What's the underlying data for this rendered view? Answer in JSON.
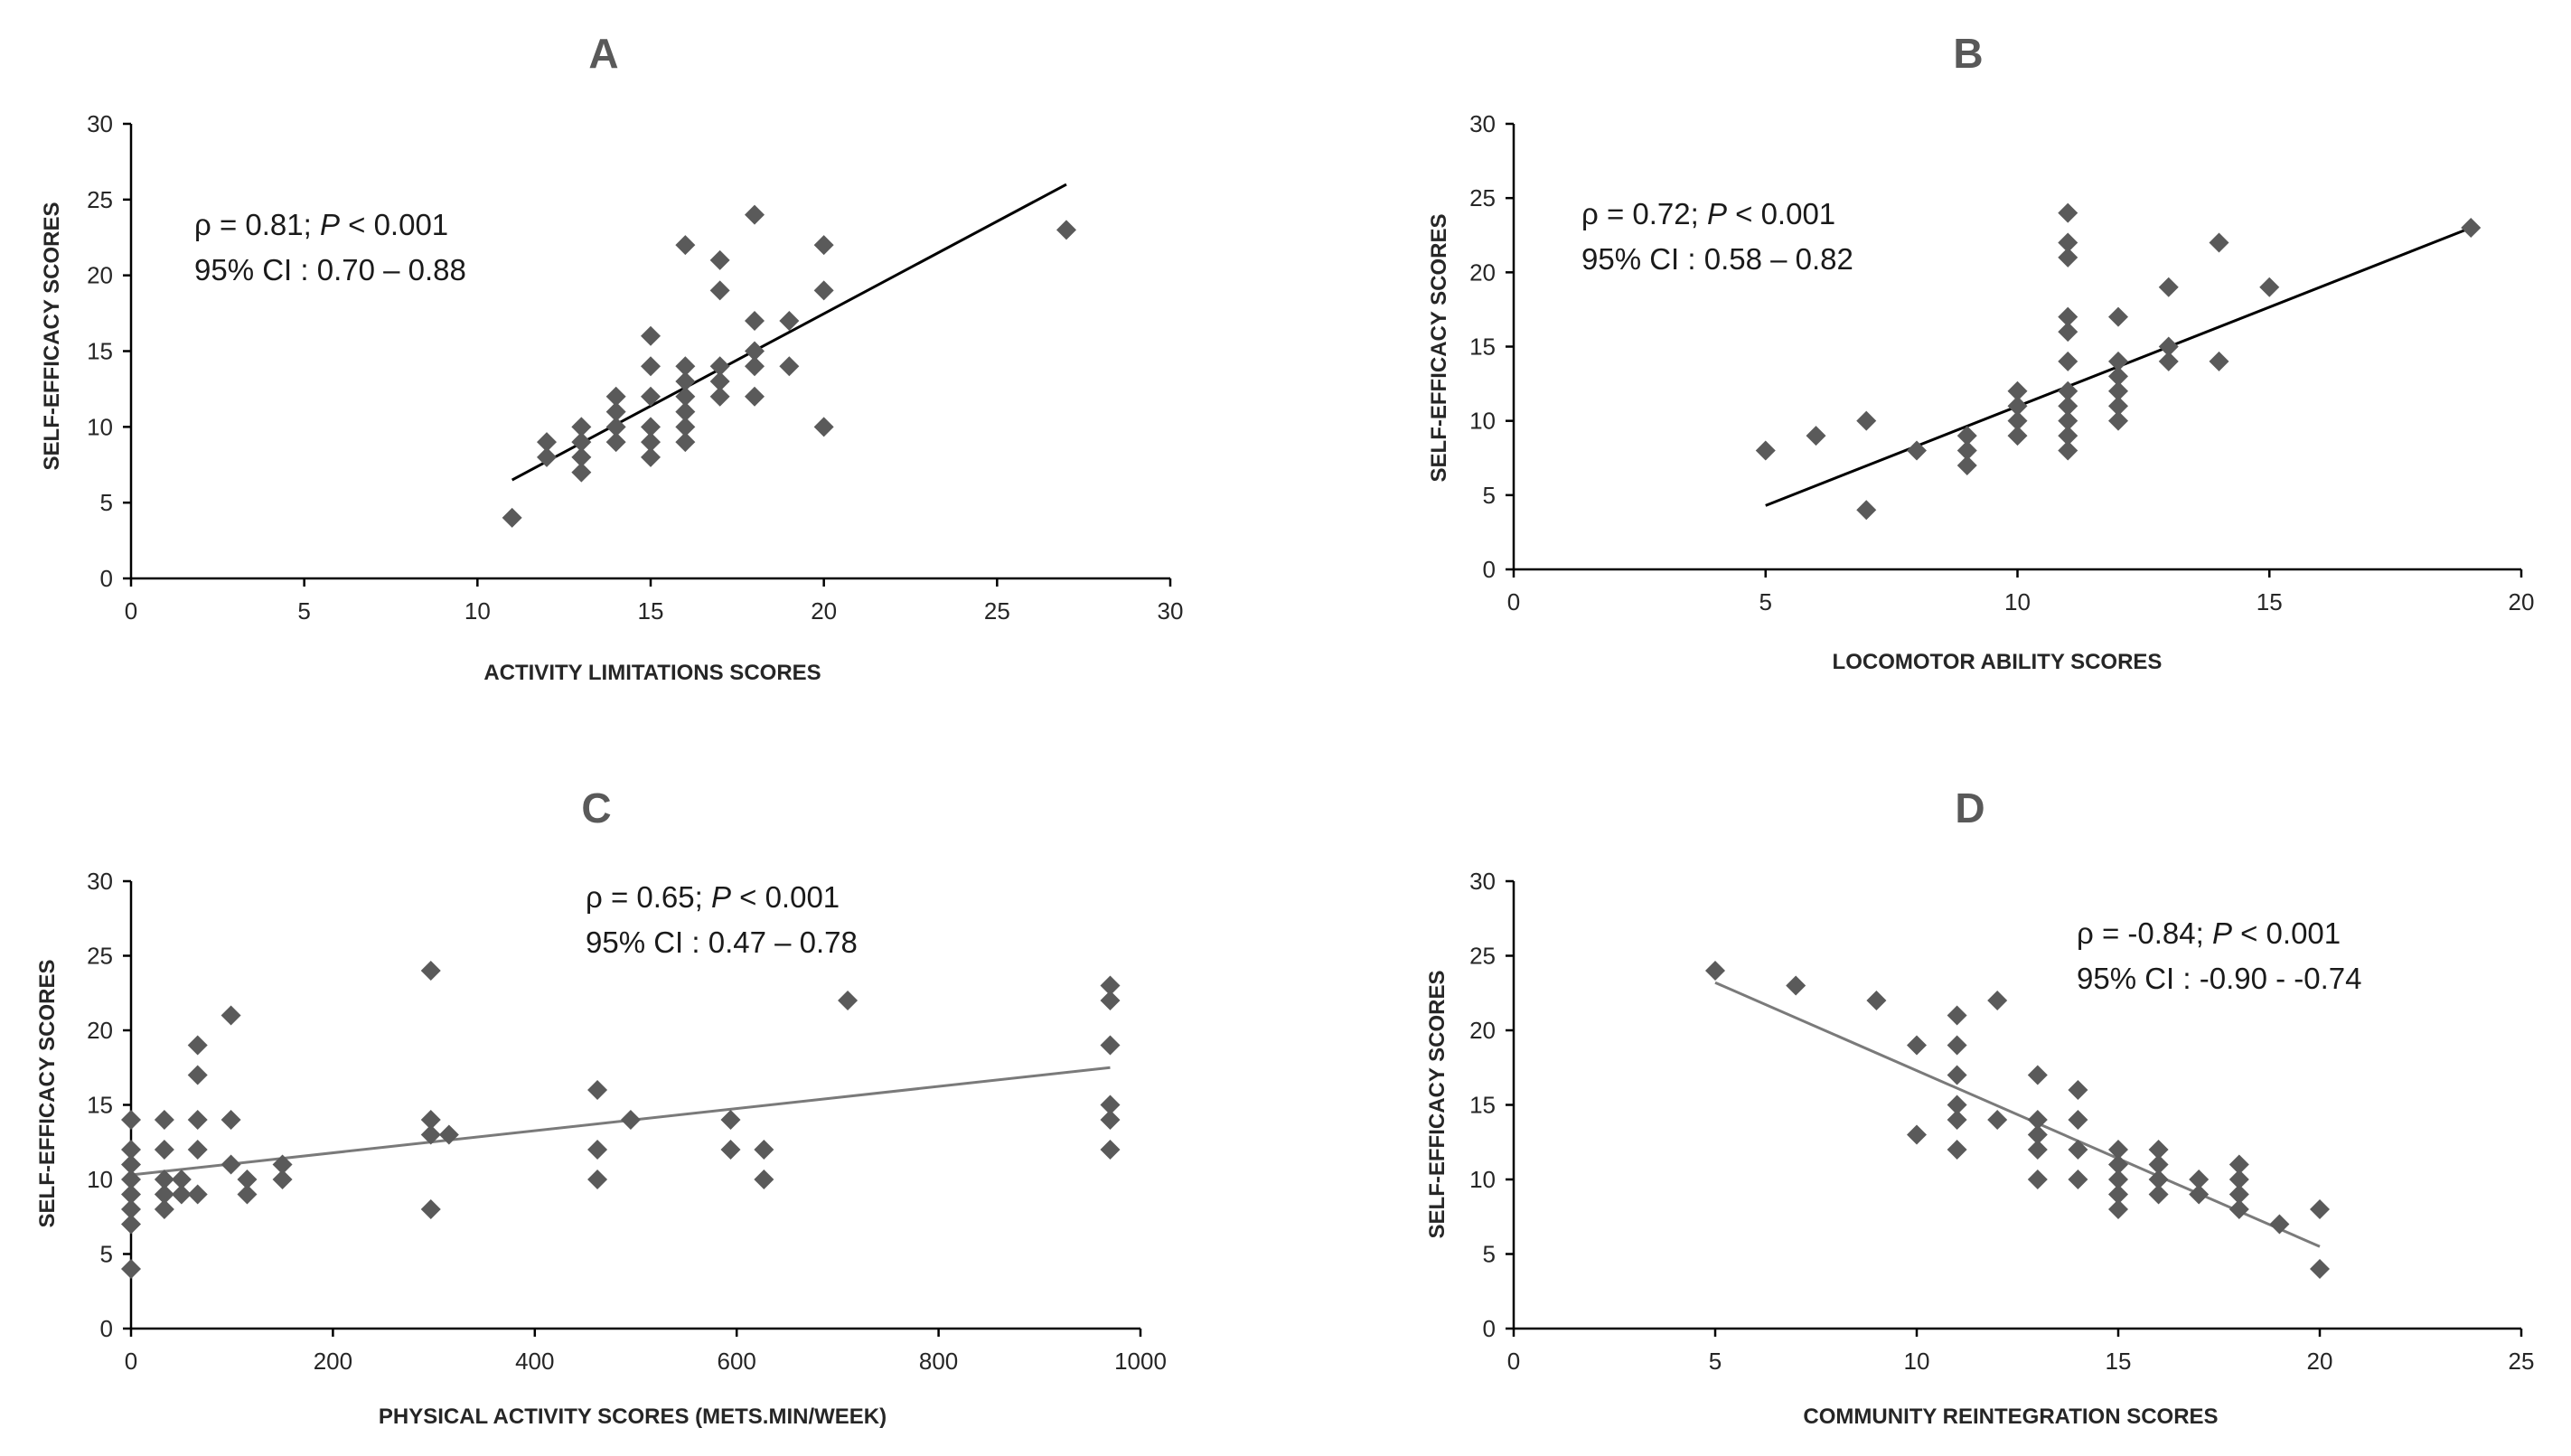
{
  "chart_data": [
    {
      "panel": "A",
      "type": "scatter",
      "xlabel": "ACTIVITY LIMITATIONS SCORES",
      "ylabel": "SELF-EFFICACY SCORES",
      "xlim": [
        0,
        30
      ],
      "ylim": [
        0,
        30
      ],
      "xticks": [
        0,
        5,
        10,
        15,
        20,
        25,
        30
      ],
      "yticks": [
        0,
        5,
        10,
        15,
        20,
        25,
        30
      ],
      "annotation": [
        "ρ = 0.81; ",
        "P",
        " < 0.001"
      ],
      "annotation2": "95% CI : 0.70 – 0.88",
      "trendline": [
        [
          11,
          6.5
        ],
        [
          27,
          26
        ]
      ],
      "trend_color": "#000000",
      "points": [
        [
          11,
          4
        ],
        [
          12,
          8
        ],
        [
          12,
          9
        ],
        [
          13,
          7
        ],
        [
          13,
          8
        ],
        [
          13,
          9
        ],
        [
          13,
          10
        ],
        [
          14,
          9
        ],
        [
          14,
          10
        ],
        [
          14,
          11
        ],
        [
          14,
          12
        ],
        [
          15,
          8
        ],
        [
          15,
          9
        ],
        [
          15,
          10
        ],
        [
          15,
          12
        ],
        [
          15,
          14
        ],
        [
          15,
          16
        ],
        [
          16,
          9
        ],
        [
          16,
          10
        ],
        [
          16,
          11
        ],
        [
          16,
          12
        ],
        [
          16,
          13
        ],
        [
          16,
          14
        ],
        [
          16,
          22
        ],
        [
          17,
          12
        ],
        [
          17,
          13
        ],
        [
          17,
          14
        ],
        [
          17,
          19
        ],
        [
          17,
          21
        ],
        [
          18,
          12
        ],
        [
          18,
          14
        ],
        [
          18,
          15
        ],
        [
          18,
          17
        ],
        [
          18,
          24
        ],
        [
          19,
          14
        ],
        [
          19,
          17
        ],
        [
          20,
          10
        ],
        [
          20,
          19
        ],
        [
          20,
          22
        ],
        [
          27,
          23
        ]
      ]
    },
    {
      "panel": "B",
      "type": "scatter",
      "xlabel": "LOCOMOTOR ABILITY SCORES",
      "ylabel": "SELF-EFFICACY SCORES",
      "xlim": [
        0,
        20
      ],
      "ylim": [
        0,
        30
      ],
      "xticks": [
        0,
        5,
        10,
        15,
        20
      ],
      "yticks": [
        0,
        5,
        10,
        15,
        20,
        25,
        30
      ],
      "annotation": [
        "ρ = 0.72; ",
        "P",
        " < 0.001"
      ],
      "annotation2": "95% CI : 0.58 – 0.82",
      "trendline": [
        [
          5,
          4.3
        ],
        [
          19,
          23
        ]
      ],
      "trend_color": "#000000",
      "points": [
        [
          5,
          8
        ],
        [
          6,
          9
        ],
        [
          7,
          4
        ],
        [
          7,
          10
        ],
        [
          8,
          8
        ],
        [
          9,
          7
        ],
        [
          9,
          8
        ],
        [
          9,
          9
        ],
        [
          10,
          9
        ],
        [
          10,
          10
        ],
        [
          10,
          11
        ],
        [
          10,
          12
        ],
        [
          11,
          8
        ],
        [
          11,
          9
        ],
        [
          11,
          10
        ],
        [
          11,
          11
        ],
        [
          11,
          12
        ],
        [
          11,
          14
        ],
        [
          11,
          16
        ],
        [
          11,
          17
        ],
        [
          11,
          21
        ],
        [
          11,
          22
        ],
        [
          11,
          24
        ],
        [
          12,
          10
        ],
        [
          12,
          11
        ],
        [
          12,
          12
        ],
        [
          12,
          13
        ],
        [
          12,
          14
        ],
        [
          12,
          17
        ],
        [
          13,
          14
        ],
        [
          13,
          15
        ],
        [
          13,
          19
        ],
        [
          14,
          14
        ],
        [
          14,
          22
        ],
        [
          15,
          19
        ],
        [
          19,
          23
        ]
      ]
    },
    {
      "panel": "C",
      "type": "scatter",
      "xlabel": "PHYSICAL ACTIVITY SCORES (METS.MIN/WEEK)",
      "ylabel": "SELF-EFFICACY SCORES",
      "xlim": [
        0,
        1000
      ],
      "ylim": [
        0,
        30
      ],
      "xticks": [
        0,
        200,
        400,
        600,
        800,
        1000
      ],
      "yticks": [
        0,
        5,
        10,
        15,
        20,
        25,
        30
      ],
      "annotation": [
        "ρ = 0.65; ",
        "P",
        " < 0.001"
      ],
      "annotation2": "95% CI : 0.47 – 0.78",
      "trendline": [
        [
          0,
          10.3
        ],
        [
          970,
          17.5
        ]
      ],
      "trend_color": "#7a7a7a",
      "points": [
        [
          0,
          4
        ],
        [
          0,
          7
        ],
        [
          0,
          8
        ],
        [
          0,
          9
        ],
        [
          0,
          10
        ],
        [
          0,
          11
        ],
        [
          0,
          12
        ],
        [
          0,
          14
        ],
        [
          33,
          8
        ],
        [
          33,
          9
        ],
        [
          33,
          10
        ],
        [
          33,
          12
        ],
        [
          33,
          14
        ],
        [
          50,
          9
        ],
        [
          50,
          10
        ],
        [
          66,
          9
        ],
        [
          66,
          12
        ],
        [
          66,
          14
        ],
        [
          66,
          17
        ],
        [
          66,
          19
        ],
        [
          99,
          11
        ],
        [
          99,
          14
        ],
        [
          99,
          21
        ],
        [
          115,
          9
        ],
        [
          115,
          10
        ],
        [
          150,
          10
        ],
        [
          150,
          11
        ],
        [
          297,
          8
        ],
        [
          297,
          13
        ],
        [
          297,
          14
        ],
        [
          297,
          24
        ],
        [
          315,
          13
        ],
        [
          462,
          10
        ],
        [
          462,
          12
        ],
        [
          462,
          16
        ],
        [
          495,
          14
        ],
        [
          594,
          12
        ],
        [
          594,
          14
        ],
        [
          627,
          10
        ],
        [
          627,
          12
        ],
        [
          710,
          22
        ],
        [
          970,
          12
        ],
        [
          970,
          14
        ],
        [
          970,
          15
        ],
        [
          970,
          19
        ],
        [
          970,
          22
        ],
        [
          970,
          23
        ]
      ]
    },
    {
      "panel": "D",
      "type": "scatter",
      "xlabel": "COMMUNITY REINTEGRATION SCORES",
      "ylabel": "SELF-EFFICACY SCORES",
      "xlim": [
        0,
        25
      ],
      "ylim": [
        0,
        30
      ],
      "xticks": [
        0,
        5,
        10,
        15,
        20,
        25
      ],
      "yticks": [
        0,
        5,
        10,
        15,
        20,
        25,
        30
      ],
      "annotation": [
        "ρ = -0.84; ",
        "P",
        " < 0.001"
      ],
      "annotation2": "95% CI : -0.90 - -0.74",
      "trendline": [
        [
          5,
          23.2
        ],
        [
          20,
          5.5
        ]
      ],
      "trend_color": "#7a7a7a",
      "points": [
        [
          5,
          24
        ],
        [
          7,
          23
        ],
        [
          9,
          22
        ],
        [
          10,
          13
        ],
        [
          10,
          19
        ],
        [
          11,
          12
        ],
        [
          11,
          14
        ],
        [
          11,
          15
        ],
        [
          11,
          17
        ],
        [
          11,
          19
        ],
        [
          11,
          21
        ],
        [
          12,
          14
        ],
        [
          12,
          22
        ],
        [
          13,
          10
        ],
        [
          13,
          12
        ],
        [
          13,
          13
        ],
        [
          13,
          14
        ],
        [
          13,
          17
        ],
        [
          14,
          10
        ],
        [
          14,
          12
        ],
        [
          14,
          14
        ],
        [
          14,
          16
        ],
        [
          15,
          8
        ],
        [
          15,
          9
        ],
        [
          15,
          10
        ],
        [
          15,
          11
        ],
        [
          15,
          12
        ],
        [
          16,
          9
        ],
        [
          16,
          10
        ],
        [
          16,
          11
        ],
        [
          16,
          12
        ],
        [
          17,
          9
        ],
        [
          17,
          10
        ],
        [
          18,
          8
        ],
        [
          18,
          9
        ],
        [
          18,
          10
        ],
        [
          18,
          11
        ],
        [
          19,
          7
        ],
        [
          20,
          4
        ],
        [
          20,
          8
        ]
      ]
    }
  ]
}
